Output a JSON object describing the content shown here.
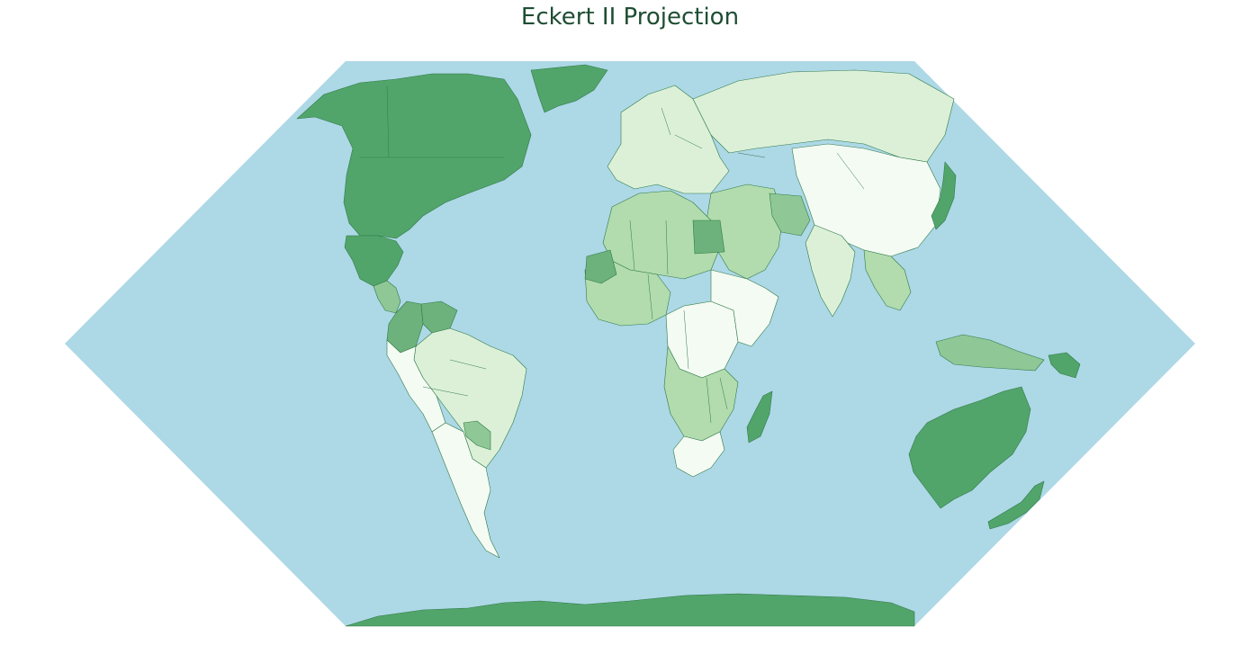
{
  "title": "Eckert II Projection",
  "projection": "Eckert II",
  "colors": {
    "ocean": "#add8e6",
    "border": "#2f7a48",
    "title": "#1f4e33",
    "choropleth_scale": [
      "#f4fbf3",
      "#dcf0d8",
      "#b2dcae",
      "#8fc896",
      "#6db27c",
      "#52a56a"
    ]
  },
  "regions": [
    {
      "name": "North America",
      "shade": 5
    },
    {
      "name": "Greenland",
      "shade": 5
    },
    {
      "name": "Mexico",
      "shade": 5
    },
    {
      "name": "Central America",
      "shade": 3
    },
    {
      "name": "Colombia",
      "shade": 4
    },
    {
      "name": "Venezuela",
      "shade": 4
    },
    {
      "name": "Brazil",
      "shade": 1
    },
    {
      "name": "Western South America",
      "shade": 0
    },
    {
      "name": "Southern Cone",
      "shade": 0
    },
    {
      "name": "Paraguay",
      "shade": 3
    },
    {
      "name": "Europe",
      "shade": 1
    },
    {
      "name": "Russia",
      "shade": 1
    },
    {
      "name": "China",
      "shade": 0
    },
    {
      "name": "Middle East",
      "shade": 2
    },
    {
      "name": "Iran",
      "shade": 3
    },
    {
      "name": "India",
      "shade": 1
    },
    {
      "name": "Southeast Asia",
      "shade": 2
    },
    {
      "name": "Japan",
      "shade": 5
    },
    {
      "name": "North Africa",
      "shade": 2
    },
    {
      "name": "Egypt",
      "shade": 4
    },
    {
      "name": "West Africa",
      "shade": 2
    },
    {
      "name": "Mauritania",
      "shade": 4
    },
    {
      "name": "Central Africa",
      "shade": 0
    },
    {
      "name": "East Africa",
      "shade": 0
    },
    {
      "name": "Southern Africa",
      "shade": 2
    },
    {
      "name": "South Africa",
      "shade": 0
    },
    {
      "name": "Madagascar",
      "shade": 5
    },
    {
      "name": "Indonesia",
      "shade": 3
    },
    {
      "name": "Papua New Guinea",
      "shade": 5
    },
    {
      "name": "Australia",
      "shade": 5
    },
    {
      "name": "New Zealand",
      "shade": 5
    },
    {
      "name": "Antarctica",
      "shade": 5
    }
  ]
}
